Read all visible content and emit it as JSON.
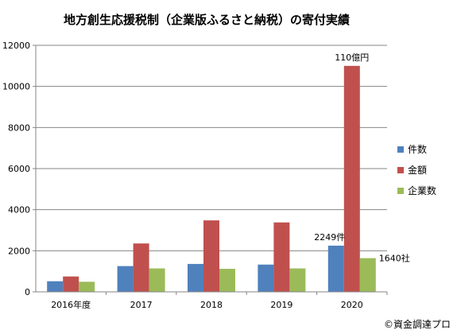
{
  "chart_data": {
    "type": "bar",
    "title": "地方創生応援税制（企業版ふるさと納税）の寄付実績",
    "categories": [
      "2016年度",
      "2017",
      "2018",
      "2019",
      "2020"
    ],
    "series": [
      {
        "name": "件数",
        "color": "#4f81bd",
        "values": [
          517,
          1254,
          1359,
          1327,
          2249
        ]
      },
      {
        "name": "金額",
        "color": "#c0504d",
        "values": [
          748,
          2356,
          3479,
          3379,
          11000
        ]
      },
      {
        "name": "企業数",
        "color": "#9bbb59",
        "values": [
          490,
          1141,
          1122,
          1141,
          1640
        ]
      }
    ],
    "ylim": [
      0,
      12000
    ],
    "yticks": [
      0,
      2000,
      4000,
      6000,
      8000,
      10000,
      12000
    ],
    "grid": true,
    "legend_position": "right",
    "annotations": [
      {
        "text": "110億円",
        "category": "2020",
        "series": "金額"
      },
      {
        "text": "2249件",
        "category": "2020",
        "series": "件数"
      },
      {
        "text": "1640社",
        "category": "2020",
        "series": "企業数"
      }
    ]
  },
  "footer": {
    "credit": "©資金調達プロ"
  }
}
